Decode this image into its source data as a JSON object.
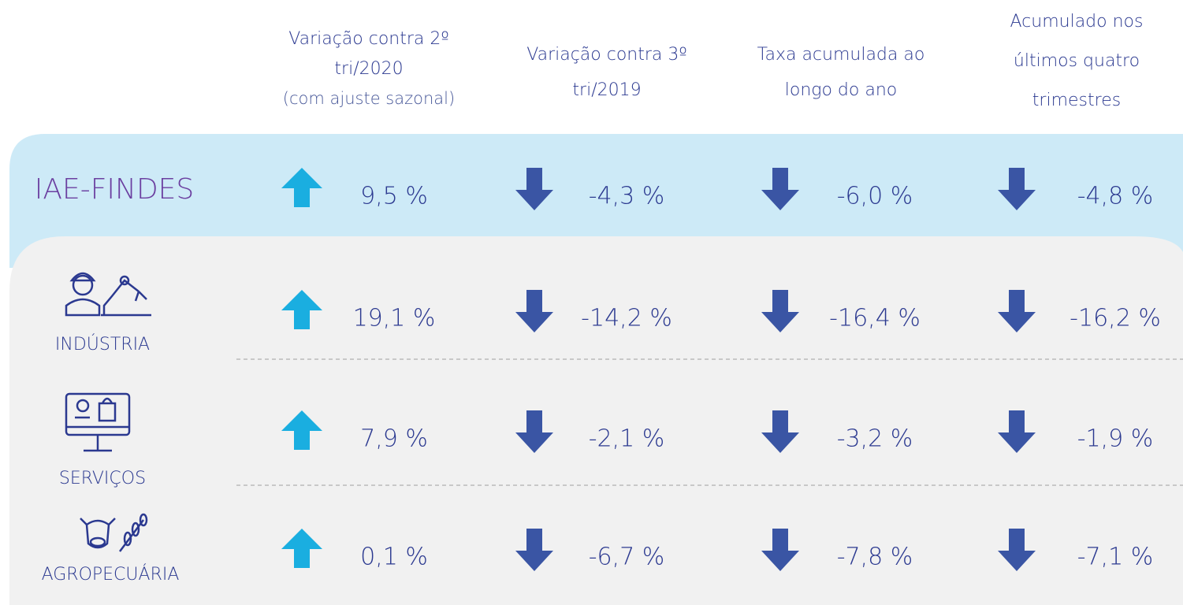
{
  "header": {
    "columns": [
      {
        "lines": [
          "Variação contra 2º",
          "tri/2020"
        ],
        "note": "(com ajuste sazonal)"
      },
      {
        "lines": [
          "Variação contra 3º",
          "tri/2019"
        ]
      },
      {
        "lines": [
          "Taxa acumulada ao",
          "longo do ano"
        ]
      },
      {
        "lines": [
          "Acumulado nos",
          "últimos quatro",
          "trimestres"
        ]
      }
    ]
  },
  "rows": [
    {
      "label": "IAE-FINDES",
      "values": [
        "9,5 %",
        "-4,3 %",
        "-6,0 %",
        "-4,8 %"
      ]
    },
    {
      "label": "INDÚSTRIA",
      "values": [
        "19,1 %",
        "-14,2 %",
        "-16,4 %",
        "-16,2 %"
      ]
    },
    {
      "label": "SERVIÇOS",
      "values": [
        "7,9 %",
        "-2,1 %",
        "-3,2 %",
        "-1,9 %"
      ]
    },
    {
      "label": "AGROPECUÁRIA",
      "values": [
        "0,1 %",
        "-6,7 %",
        "-7,8 %",
        "-7,1 %"
      ]
    }
  ]
}
